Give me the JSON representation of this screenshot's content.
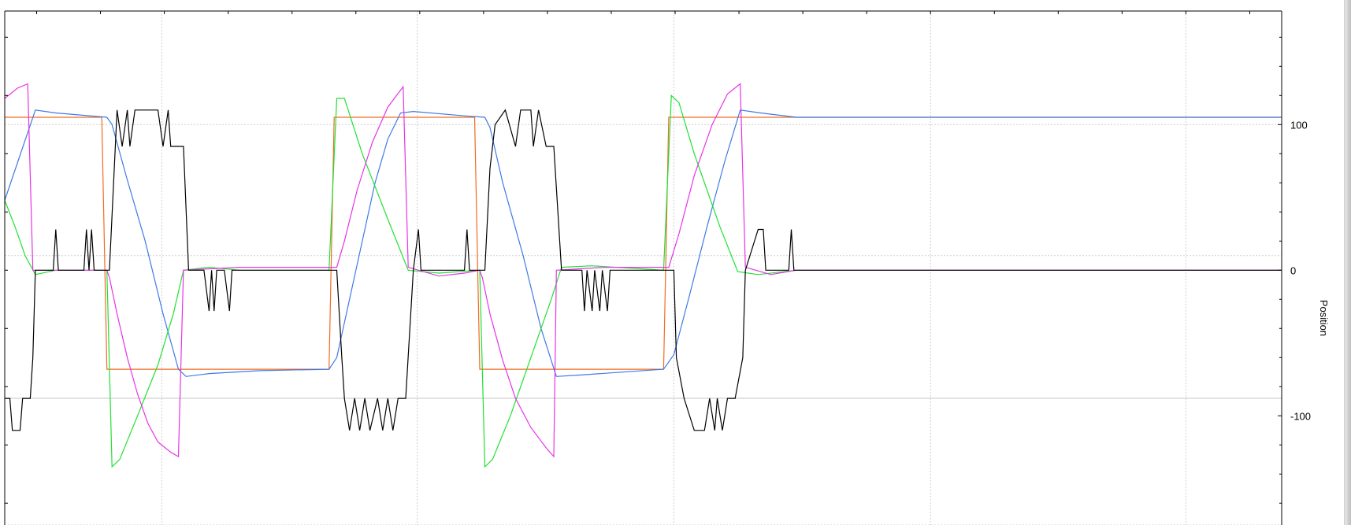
{
  "chart_data": {
    "type": "line",
    "ylabel": "Position",
    "xlabel": "",
    "title": "",
    "ylim": [
      -175,
      178
    ],
    "xlim": [
      0,
      500
    ],
    "y_ticks": [
      -100,
      0,
      100
    ],
    "y_tick_labels": [
      "-100",
      "0",
      "100"
    ],
    "grid": true,
    "grid_x": [
      61.5,
      161.5,
      262,
      362.5,
      462.5
    ],
    "grid_y_dotted": [
      -175,
      100,
      10
    ],
    "grid_y_solid": [
      -88
    ],
    "legend": "none",
    "series": [
      {
        "color": "#f26b22",
        "points": [
          [
            0,
            105
          ],
          [
            38,
            105
          ],
          [
            40,
            -68
          ],
          [
            127,
            -68
          ],
          [
            129,
            105
          ],
          [
            184,
            105
          ],
          [
            186,
            -68
          ],
          [
            258,
            -68
          ],
          [
            260,
            105
          ],
          [
            500,
            105
          ]
        ]
      },
      {
        "color": "#3f7ae6",
        "points": [
          [
            0,
            48
          ],
          [
            12,
            110
          ],
          [
            20,
            108
          ],
          [
            40,
            105
          ],
          [
            42,
            100
          ],
          [
            48,
            62
          ],
          [
            55,
            20
          ],
          [
            62,
            -30
          ],
          [
            68,
            -68
          ],
          [
            71,
            -73
          ],
          [
            80,
            -71
          ],
          [
            100,
            -69
          ],
          [
            127,
            -68
          ],
          [
            130,
            -60
          ],
          [
            135,
            -20
          ],
          [
            140,
            20
          ],
          [
            145,
            60
          ],
          [
            150,
            90
          ],
          [
            155,
            108
          ],
          [
            160,
            109
          ],
          [
            180,
            106
          ],
          [
            188,
            105
          ],
          [
            190,
            98
          ],
          [
            195,
            60
          ],
          [
            203,
            10
          ],
          [
            210,
            -40
          ],
          [
            216,
            -73
          ],
          [
            225,
            -72
          ],
          [
            258,
            -68
          ],
          [
            262,
            -58
          ],
          [
            268,
            -18
          ],
          [
            275,
            30
          ],
          [
            282,
            75
          ],
          [
            288,
            110
          ],
          [
            296,
            108
          ],
          [
            310,
            105
          ],
          [
            500,
            105
          ]
        ]
      },
      {
        "color": "#21e033",
        "points": [
          [
            0,
            48
          ],
          [
            4,
            30
          ],
          [
            8,
            10
          ],
          [
            12,
            -3
          ],
          [
            20,
            0
          ],
          [
            40,
            0
          ],
          [
            42,
            -135
          ],
          [
            45,
            -130
          ],
          [
            52,
            -100
          ],
          [
            60,
            -65
          ],
          [
            66,
            -30
          ],
          [
            70,
            0
          ],
          [
            80,
            2
          ],
          [
            92,
            0
          ],
          [
            127,
            0
          ],
          [
            130,
            118
          ],
          [
            133,
            118
          ],
          [
            140,
            80
          ],
          [
            150,
            35
          ],
          [
            158,
            0
          ],
          [
            170,
            -2
          ],
          [
            186,
            0
          ],
          [
            188,
            -135
          ],
          [
            191,
            -130
          ],
          [
            198,
            -100
          ],
          [
            206,
            -60
          ],
          [
            214,
            -20
          ],
          [
            218,
            2
          ],
          [
            230,
            3
          ],
          [
            258,
            0
          ],
          [
            261,
            120
          ],
          [
            264,
            115
          ],
          [
            270,
            80
          ],
          [
            280,
            30
          ],
          [
            287,
            -1
          ],
          [
            295,
            -3
          ],
          [
            310,
            0
          ],
          [
            500,
            0
          ]
        ]
      },
      {
        "color": "#e634e6",
        "points": [
          [
            0,
            118
          ],
          [
            5,
            125
          ],
          [
            9,
            128
          ],
          [
            11,
            0
          ],
          [
            40,
            0
          ],
          [
            41,
            -5
          ],
          [
            44,
            -30
          ],
          [
            48,
            -60
          ],
          [
            52,
            -85
          ],
          [
            56,
            -105
          ],
          [
            60,
            -118
          ],
          [
            65,
            -125
          ],
          [
            68,
            -128
          ],
          [
            70,
            0
          ],
          [
            92,
            2
          ],
          [
            130,
            2
          ],
          [
            133,
            20
          ],
          [
            138,
            55
          ],
          [
            144,
            88
          ],
          [
            150,
            112
          ],
          [
            156,
            126
          ],
          [
            158,
            2
          ],
          [
            170,
            -4
          ],
          [
            180,
            -2
          ],
          [
            186,
            0
          ],
          [
            187,
            -5
          ],
          [
            190,
            -30
          ],
          [
            195,
            -62
          ],
          [
            200,
            -88
          ],
          [
            206,
            -108
          ],
          [
            212,
            -122
          ],
          [
            215,
            -128
          ],
          [
            216,
            0
          ],
          [
            235,
            2
          ],
          [
            260,
            2
          ],
          [
            264,
            25
          ],
          [
            270,
            65
          ],
          [
            277,
            100
          ],
          [
            283,
            121
          ],
          [
            288,
            128
          ],
          [
            290,
            2
          ],
          [
            300,
            -3
          ],
          [
            310,
            0
          ],
          [
            500,
            0
          ]
        ]
      },
      {
        "color": "#000000",
        "points": [
          [
            0,
            -88
          ],
          [
            2,
            -88
          ],
          [
            3,
            -110
          ],
          [
            6,
            -110
          ],
          [
            7,
            -88
          ],
          [
            10,
            -88
          ],
          [
            11,
            -60
          ],
          [
            12,
            0
          ],
          [
            19,
            0
          ],
          [
            20,
            28
          ],
          [
            21,
            0
          ],
          [
            31,
            0
          ],
          [
            32,
            28
          ],
          [
            33,
            0
          ],
          [
            34,
            28
          ],
          [
            35,
            0
          ],
          [
            41,
            0
          ],
          [
            44,
            110
          ],
          [
            46,
            85
          ],
          [
            48,
            110
          ],
          [
            49,
            85
          ],
          [
            51,
            110
          ],
          [
            60,
            110
          ],
          [
            62,
            85
          ],
          [
            64,
            110
          ],
          [
            65,
            85
          ],
          [
            70,
            85
          ],
          [
            72,
            0
          ],
          [
            78,
            0
          ],
          [
            80,
            -28
          ],
          [
            81,
            0
          ],
          [
            82,
            -28
          ],
          [
            83,
            0
          ],
          [
            86,
            0
          ],
          [
            88,
            -28
          ],
          [
            89,
            0
          ],
          [
            92,
            0
          ],
          [
            130,
            0
          ],
          [
            132,
            -60
          ],
          [
            133,
            -88
          ],
          [
            135,
            -110
          ],
          [
            137,
            -88
          ],
          [
            139,
            -110
          ],
          [
            141,
            -88
          ],
          [
            143,
            -110
          ],
          [
            146,
            -88
          ],
          [
            148,
            -110
          ],
          [
            150,
            -88
          ],
          [
            152,
            -110
          ],
          [
            154,
            -88
          ],
          [
            157,
            -88
          ],
          [
            160,
            0
          ],
          [
            162,
            28
          ],
          [
            163,
            0
          ],
          [
            180,
            0
          ],
          [
            181,
            28
          ],
          [
            182,
            0
          ],
          [
            188,
            0
          ],
          [
            190,
            70
          ],
          [
            192,
            100
          ],
          [
            196,
            110
          ],
          [
            200,
            85
          ],
          [
            202,
            110
          ],
          [
            206,
            110
          ],
          [
            207,
            85
          ],
          [
            209,
            110
          ],
          [
            212,
            85
          ],
          [
            215,
            85
          ],
          [
            218,
            0
          ],
          [
            226,
            0
          ],
          [
            227,
            -28
          ],
          [
            228,
            0
          ],
          [
            230,
            -28
          ],
          [
            231,
            0
          ],
          [
            233,
            -28
          ],
          [
            234,
            0
          ],
          [
            236,
            -28
          ],
          [
            237,
            0
          ],
          [
            240,
            0
          ],
          [
            262,
            0
          ],
          [
            263,
            -60
          ],
          [
            266,
            -88
          ],
          [
            270,
            -110
          ],
          [
            274,
            -110
          ],
          [
            276,
            -88
          ],
          [
            278,
            -110
          ],
          [
            279,
            -88
          ],
          [
            281,
            -110
          ],
          [
            283,
            -88
          ],
          [
            286,
            -88
          ],
          [
            289,
            -60
          ],
          [
            290,
            0
          ],
          [
            295,
            28
          ],
          [
            297,
            28
          ],
          [
            298,
            0
          ],
          [
            307,
            0
          ],
          [
            308,
            28
          ],
          [
            309,
            0
          ],
          [
            500,
            0
          ]
        ]
      }
    ]
  }
}
